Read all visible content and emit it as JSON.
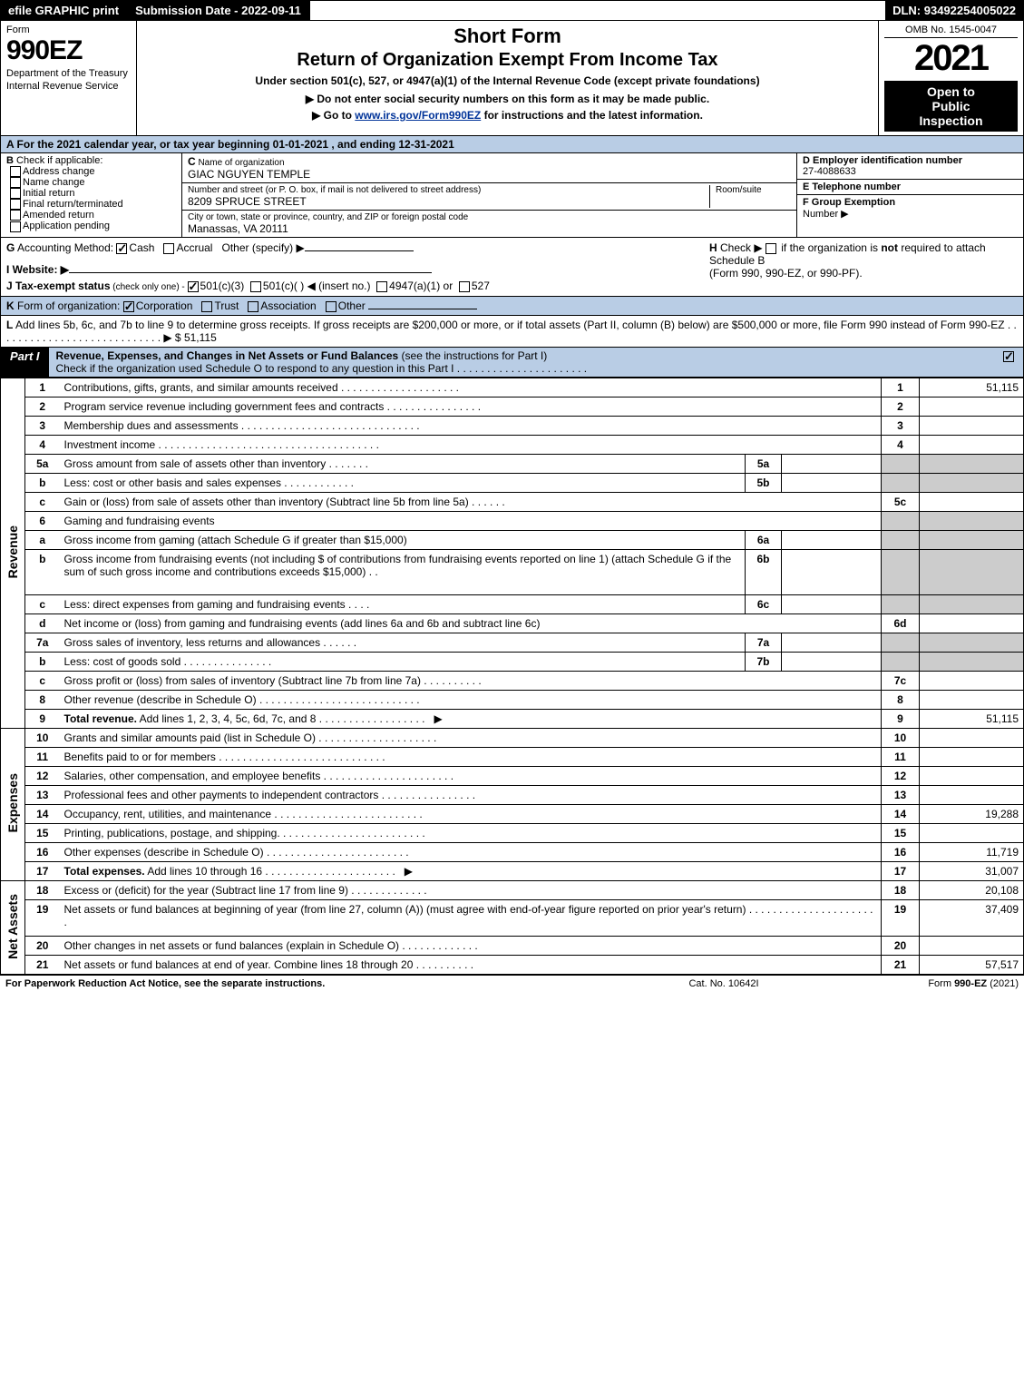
{
  "topbar": {
    "left": "efile GRAPHIC print",
    "mid_label": "Submission Date - ",
    "mid_value": "2022-09-11",
    "right_label": "DLN: ",
    "right_value": "93492254005022"
  },
  "header": {
    "form_label": "Form",
    "form_number": "990EZ",
    "dept1": "Department of the Treasury",
    "dept2": "Internal Revenue Service",
    "title1": "Short Form",
    "title2": "Return of Organization Exempt From Income Tax",
    "sub1": "Under section 501(c), 527, or 4947(a)(1) of the Internal Revenue Code (except private foundations)",
    "sub2": "▶ Do not enter social security numbers on this form as it may be made public.",
    "sub3_pre": "▶ Go to ",
    "sub3_link": "www.irs.gov/Form990EZ",
    "sub3_post": " for instructions and the latest information.",
    "omb": "OMB No. 1545-0047",
    "year": "2021",
    "open1": "Open to",
    "open2": "Public",
    "open3": "Inspection"
  },
  "rowA": {
    "text": "A  For the 2021 calendar year, or tax year beginning 01-01-2021 , and ending 12-31-2021"
  },
  "sectionB": {
    "hdr": "B",
    "hdr_txt": "  Check if applicable:",
    "opt1": "Address change",
    "opt2": "Name change",
    "opt3": "Initial return",
    "opt4": "Final return/terminated",
    "opt5": "Amended return",
    "opt6": "Application pending"
  },
  "sectionC": {
    "c_lbl": "C",
    "c_lbl_txt": " Name of organization",
    "c_name": "GIAC NGUYEN TEMPLE",
    "addr_lbl": "Number and street (or P. O. box, if mail is not delivered to street address)",
    "addr_room": "Room/suite",
    "addr": "8209 SPRUCE STREET",
    "city_lbl": "City or town, state or province, country, and ZIP or foreign postal code",
    "city": "Manassas, VA  20111"
  },
  "sectionD": {
    "lbl": "D Employer identification number",
    "ein": "27-4088633"
  },
  "sectionE": {
    "lbl": "E Telephone number",
    "val": ""
  },
  "sectionF": {
    "lbl": "F Group Exemption",
    "lbl2": "Number  ▶",
    "val": ""
  },
  "rowG": {
    "lbl": "G",
    "txt": " Accounting Method:  ",
    "cash": "Cash",
    "accrual": "Accrual",
    "other": "Other (specify) ▶"
  },
  "rowH": {
    "lbl": "H",
    "txt": "  Check ▶  ",
    "chk_txt": " if the organization is ",
    "not": "not",
    "txt2": " required to attach Schedule B",
    "txt3": "(Form 990, 990-EZ, or 990-PF)."
  },
  "rowI": {
    "lbl": "I Website: ▶",
    "val": ""
  },
  "rowJ": {
    "lbl": "J Tax-exempt status",
    "sub": " (check only one) - ",
    "o1": "501(c)(3)",
    "o2": "501(c)(  ) ◀ (insert no.)",
    "o3": "4947(a)(1) or",
    "o4": "527"
  },
  "rowK": {
    "lbl": "K",
    "txt": " Form of organization:  ",
    "o1": "Corporation",
    "o2": "Trust",
    "o3": "Association",
    "o4": "Other"
  },
  "rowL": {
    "lbl": "L",
    "txt": " Add lines 5b, 6c, and 7b to line 9 to determine gross receipts. If gross receipts are $200,000 or more, or if total assets (Part II, column (B) below) are $500,000 or more, file Form 990 instead of Form 990-EZ  .  .  .  .  .  .  .  .  .  .  .  .  .  .  .  .  .  .  .  .  .  .  .  .  .  .  .  .  ▶ $ ",
    "amt": "51,115"
  },
  "partI": {
    "lbl": "Part I",
    "title": "Revenue, Expenses, and Changes in Net Assets or Fund Balances ",
    "sub": "(see the instructions for Part I)",
    "check_txt": "Check if the organization used Schedule O to respond to any question in this Part I  .  .  .  .  .  .  .  .  .  .  .  .  .  .  .  .  .  .  .  .  .  ."
  },
  "tabs": {
    "revenue": "Revenue",
    "expenses": "Expenses",
    "netassets": "Net Assets"
  },
  "lines": [
    {
      "sec": "rev",
      "n": "1",
      "desc": "Contributions, gifts, grants, and similar amounts received  .  .  .  .  .  .  .  .  .  .  .  .  .  .  .  .  .  .  .  .",
      "ln": "1",
      "amt": "51,115"
    },
    {
      "sec": "rev",
      "n": "2",
      "desc": "Program service revenue including government fees and contracts  .  .  .  .  .  .  .  .  .  .  .  .  .  .  .  .",
      "ln": "2",
      "amt": ""
    },
    {
      "sec": "rev",
      "n": "3",
      "desc": "Membership dues and assessments  .  .  .  .  .  .  .  .  .  .  .  .  .  .  .  .  .  .  .  .  .  .  .  .  .  .  .  .  .  .",
      "ln": "3",
      "amt": ""
    },
    {
      "sec": "rev",
      "n": "4",
      "desc": "Investment income  .  .  .  .  .  .  .  .  .  .  .  .  .  .  .  .  .  .  .  .  .  .  .  .  .  .  .  .  .  .  .  .  .  .  .  .  .",
      "ln": "4",
      "amt": ""
    },
    {
      "sec": "rev",
      "n": "5a",
      "desc": "Gross amount from sale of assets other than inventory  .  .  .  .  .  .  .",
      "sub": "5a",
      "subamt": "",
      "grey": true
    },
    {
      "sec": "rev",
      "n": "b",
      "desc": "Less: cost or other basis and sales expenses  .  .  .  .  .  .  .  .  .  .  .  .",
      "sub": "5b",
      "subamt": "",
      "grey": true
    },
    {
      "sec": "rev",
      "n": "c",
      "desc": "Gain or (loss) from sale of assets other than inventory (Subtract line 5b from line 5a)  .  .  .  .  .  .",
      "ln": "5c",
      "amt": ""
    },
    {
      "sec": "rev",
      "n": "6",
      "desc": "Gaming and fundraising events",
      "grey": true,
      "nosub": true
    },
    {
      "sec": "rev",
      "n": "a",
      "desc": "Gross income from gaming (attach Schedule G if greater than $15,000)",
      "sub": "6a",
      "subamt": "",
      "grey": true
    },
    {
      "sec": "rev",
      "n": "b",
      "desc": "Gross income from fundraising events (not including $                         of contributions from fundraising events reported on line 1) (attach Schedule G if the sum of such gross income and contributions exceeds $15,000)    .  .",
      "sub": "6b",
      "subamt": "",
      "grey": true,
      "tall": true
    },
    {
      "sec": "rev",
      "n": "c",
      "desc": "Less: direct expenses from gaming and fundraising events    .  .  .  .",
      "sub": "6c",
      "subamt": "",
      "grey": true
    },
    {
      "sec": "rev",
      "n": "d",
      "desc": "Net income or (loss) from gaming and fundraising events (add lines 6a and 6b and subtract line 6c)",
      "ln": "6d",
      "amt": ""
    },
    {
      "sec": "rev",
      "n": "7a",
      "desc": "Gross sales of inventory, less returns and allowances  .  .  .  .  .  .",
      "sub": "7a",
      "subamt": "",
      "grey": true
    },
    {
      "sec": "rev",
      "n": "b",
      "desc": "Less: cost of goods sold             .  .  .  .  .  .  .  .  .  .  .  .  .  .  .",
      "sub": "7b",
      "subamt": "",
      "grey": true
    },
    {
      "sec": "rev",
      "n": "c",
      "desc": "Gross profit or (loss) from sales of inventory (Subtract line 7b from line 7a)  .  .  .  .  .  .  .  .  .  .",
      "ln": "7c",
      "amt": ""
    },
    {
      "sec": "rev",
      "n": "8",
      "desc": "Other revenue (describe in Schedule O)  .  .  .  .  .  .  .  .  .  .  .  .  .  .  .  .  .  .  .  .  .  .  .  .  .  .  .",
      "ln": "8",
      "amt": ""
    },
    {
      "sec": "rev",
      "n": "9",
      "desc": "Total revenue. Add lines 1, 2, 3, 4, 5c, 6d, 7c, and 8   .  .  .  .  .  .  .  .  .  .  .  .  .  .  .  .  .  .",
      "ln": "9",
      "amt": "51,115",
      "bold": true,
      "arrow": true
    },
    {
      "sec": "exp",
      "n": "10",
      "desc": "Grants and similar amounts paid (list in Schedule O)  .  .  .  .  .  .  .  .  .  .  .  .  .  .  .  .  .  .  .  .",
      "ln": "10",
      "amt": ""
    },
    {
      "sec": "exp",
      "n": "11",
      "desc": "Benefits paid to or for members      .  .  .  .  .  .  .  .  .  .  .  .  .  .  .  .  .  .  .  .  .  .  .  .  .  .  .  .",
      "ln": "11",
      "amt": ""
    },
    {
      "sec": "exp",
      "n": "12",
      "desc": "Salaries, other compensation, and employee benefits  .  .  .  .  .  .  .  .  .  .  .  .  .  .  .  .  .  .  .  .  .  .",
      "ln": "12",
      "amt": ""
    },
    {
      "sec": "exp",
      "n": "13",
      "desc": "Professional fees and other payments to independent contractors  .  .  .  .  .  .  .  .  .  .  .  .  .  .  .  .",
      "ln": "13",
      "amt": ""
    },
    {
      "sec": "exp",
      "n": "14",
      "desc": "Occupancy, rent, utilities, and maintenance  .  .  .  .  .  .  .  .  .  .  .  .  .  .  .  .  .  .  .  .  .  .  .  .  .",
      "ln": "14",
      "amt": "19,288"
    },
    {
      "sec": "exp",
      "n": "15",
      "desc": "Printing, publications, postage, and shipping.  .  .  .  .  .  .  .  .  .  .  .  .  .  .  .  .  .  .  .  .  .  .  .  .",
      "ln": "15",
      "amt": ""
    },
    {
      "sec": "exp",
      "n": "16",
      "desc": "Other expenses (describe in Schedule O)      .  .  .  .  .  .  .  .  .  .  .  .  .  .  .  .  .  .  .  .  .  .  .  .",
      "ln": "16",
      "amt": "11,719"
    },
    {
      "sec": "exp",
      "n": "17",
      "desc": "Total expenses. Add lines 10 through 16      .  .  .  .  .  .  .  .  .  .  .  .  .  .  .  .  .  .  .  .  .  .",
      "ln": "17",
      "amt": "31,007",
      "bold": true,
      "arrow": true
    },
    {
      "sec": "net",
      "n": "18",
      "desc": "Excess or (deficit) for the year (Subtract line 17 from line 9)        .  .  .  .  .  .  .  .  .  .  .  .  .",
      "ln": "18",
      "amt": "20,108"
    },
    {
      "sec": "net",
      "n": "19",
      "desc": "Net assets or fund balances at beginning of year (from line 27, column (A)) (must agree with end-of-year figure reported on prior year's return)  .  .  .  .  .  .  .  .  .  .  .  .  .  .  .  .  .  .  .  .  .  .",
      "ln": "19",
      "amt": "37,409",
      "tall": true
    },
    {
      "sec": "net",
      "n": "20",
      "desc": "Other changes in net assets or fund balances (explain in Schedule O)  .  .  .  .  .  .  .  .  .  .  .  .  .",
      "ln": "20",
      "amt": ""
    },
    {
      "sec": "net",
      "n": "21",
      "desc": "Net assets or fund balances at end of year. Combine lines 18 through 20  .  .  .  .  .  .  .  .  .  .",
      "ln": "21",
      "amt": "57,517"
    }
  ],
  "footer": {
    "l": "For Paperwork Reduction Act Notice, see the separate instructions.",
    "m": "Cat. No. 10642I",
    "r_pre": "Form ",
    "r_form": "990-EZ",
    "r_post": " (2021)"
  }
}
